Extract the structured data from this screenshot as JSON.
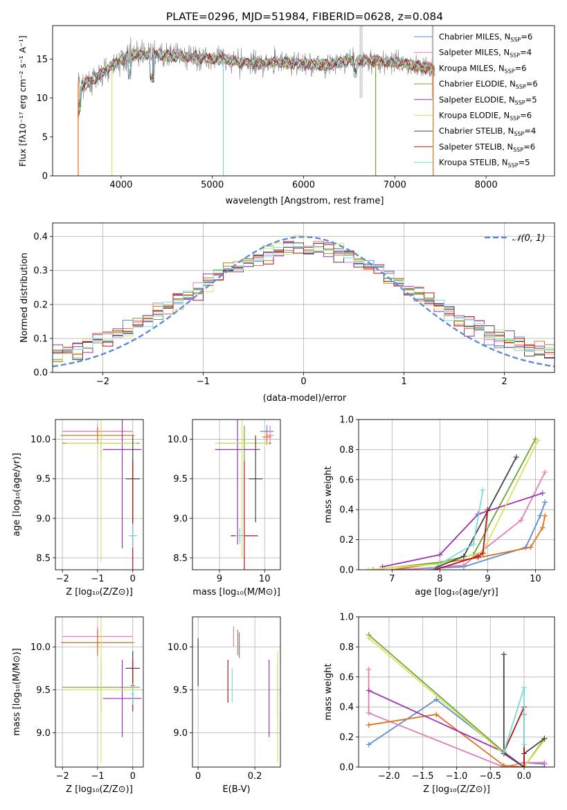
{
  "title": "PLATE=0296, MJD=51984, FIBERID=0628, z=0.084",
  "chart_data": [
    {
      "id": "spectrum",
      "type": "line",
      "xlabel": "wavelength [Angstrom, rest frame]",
      "ylabel": "Flux [fλ10⁻¹⁷ erg cm⁻² s⁻¹ A⁻¹]",
      "xlim": [
        3250,
        8750
      ],
      "ylim": [
        0,
        19.3
      ],
      "xticks": [
        4000,
        5000,
        6000,
        7000,
        8000
      ],
      "yticks": [
        0,
        5,
        10,
        15
      ],
      "legend_position": "top-right",
      "legend": [
        {
          "label": "Chabrier MILES, N",
          "sub": "SSP",
          "suffix": "=6",
          "color": "#5b8bd6"
        },
        {
          "label": "Salpeter MILES, N",
          "sub": "SSP",
          "suffix": "=4",
          "color": "#e07fb4"
        },
        {
          "label": "Kroupa MILES, N",
          "sub": "SSP",
          "suffix": "=6",
          "color": "#e0701a"
        },
        {
          "label": "Chabrier ELODIE, N",
          "sub": "SSP",
          "suffix": "=6",
          "color": "#6aa636"
        },
        {
          "label": "Salpeter ELODIE, N",
          "sub": "SSP",
          "suffix": "=5",
          "color": "#9a32b0"
        },
        {
          "label": "Kroupa ELODIE, N",
          "sub": "SSP",
          "suffix": "=6",
          "color": "#d9e35a"
        },
        {
          "label": "Chabrier STELIB, N",
          "sub": "SSP",
          "suffix": "=4",
          "color": "#444444"
        },
        {
          "label": "Salpeter STELIB, N",
          "sub": "SSP",
          "suffix": "=6",
          "color": "#b01515"
        },
        {
          "label": "Kroupa STELIB, N",
          "sub": "SSP",
          "suffix": "=5",
          "color": "#7ad9dc"
        }
      ],
      "continuum": {
        "x": [
          3550,
          3650,
          3800,
          3950,
          4100,
          4300,
          4500,
          4700,
          4900,
          5100,
          5300,
          5500,
          5700,
          5900,
          6100,
          6300,
          6500,
          6700,
          6900,
          7100,
          7300,
          7500,
          7700,
          7900,
          8100,
          8300,
          8500
        ],
        "y": [
          11.5,
          12.0,
          13.2,
          14.5,
          15.6,
          15.6,
          15.5,
          15.3,
          15.2,
          15.0,
          14.6,
          14.5,
          14.6,
          14.5,
          14.3,
          14.3,
          14.8,
          14.8,
          14.6,
          14.4,
          14.0,
          13.6,
          13.2,
          12.9,
          12.6,
          12.3,
          12.0
        ]
      }
    },
    {
      "id": "residuals",
      "type": "histogram",
      "xlabel": "(data-model)/error",
      "ylabel": "Normed distribution",
      "xlim": [
        -2.5,
        2.5
      ],
      "ylim": [
        0,
        0.44
      ],
      "xticks": [
        -2,
        -1,
        0,
        1,
        2
      ],
      "yticks": [
        0.0,
        0.1,
        0.2,
        0.3,
        0.4
      ],
      "bin_width": 0.1,
      "reference_curve": {
        "label": "𝒩(0, 1)",
        "mean": 0,
        "sigma": 1,
        "color": "#5b8bd6"
      },
      "legend_position": "top-right"
    },
    {
      "id": "age-vs-metallicity",
      "type": "errorbar",
      "xlabel": "Z [log₁₀(Z/Z⊙)]",
      "ylabel": "age  [log₁₀(age/yr)]",
      "xlim": [
        -2.2,
        0.3
      ],
      "ylim": [
        8.35,
        10.25
      ],
      "xticks": [
        -2,
        -1,
        0
      ],
      "yticks": [
        8.5,
        9.0,
        9.5,
        10.0
      ],
      "points": [
        {
          "series": "Chabrier MILES",
          "x": -1.0,
          "y": 10.1,
          "xerr": 1.0,
          "yerr": 0.05
        },
        {
          "series": "Salpeter MILES",
          "x": -1.0,
          "y": 10.1,
          "xerr": 1.0,
          "yerr": 0.08
        },
        {
          "series": "Kroupa MILES",
          "x": -1.0,
          "y": 10.05,
          "xerr": 1.05,
          "yerr": 0.1
        },
        {
          "series": "Chabrier ELODIE",
          "x": -0.9,
          "y": 9.95,
          "xerr": 1.1,
          "yerr": 0.2
        },
        {
          "series": "Salpeter ELODIE",
          "x": -0.3,
          "y": 9.87,
          "xerr": 0.55,
          "yerr": 1.25
        },
        {
          "series": "Kroupa ELODIE",
          "x": -0.9,
          "y": 9.95,
          "xerr": 1.0,
          "yerr": 1.5
        },
        {
          "series": "Chabrier STELIB",
          "x": 0.0,
          "y": 9.5,
          "xerr": 0.2,
          "yerr": 0.55
        },
        {
          "series": "Salpeter STELIB",
          "x": 0.0,
          "y": 8.78,
          "xerr": 0.1,
          "yerr": 0.95
        },
        {
          "series": "Kroupa STELIB",
          "x": 0.0,
          "y": 8.78,
          "xerr": 0.12,
          "yerr": 0.15
        }
      ]
    },
    {
      "id": "age-vs-mass",
      "type": "errorbar",
      "xlabel": "mass [log₁₀(M/M⊙)]",
      "ylabel": "",
      "xlim": [
        8.4,
        10.35
      ],
      "ylim": [
        8.35,
        10.25
      ],
      "xticks": [
        9,
        10
      ],
      "yticks": [
        8.5,
        9.0,
        9.5,
        10.0
      ],
      "points": [
        {
          "series": "Chabrier MILES",
          "x": 10.05,
          "y": 10.1,
          "xerr": 0.15,
          "yerr": 0.08
        },
        {
          "series": "Salpeter MILES",
          "x": 10.12,
          "y": 10.05,
          "xerr": 0.08,
          "yerr": 0.12
        },
        {
          "series": "Kroupa MILES",
          "x": 10.05,
          "y": 10.03,
          "xerr": 0.1,
          "yerr": 0.1
        },
        {
          "series": "Chabrier ELODIE",
          "x": 9.55,
          "y": 9.95,
          "xerr": 0.6,
          "yerr": 0.22
        },
        {
          "series": "Salpeter ELODIE",
          "x": 9.4,
          "y": 9.87,
          "xerr": 0.5,
          "yerr": 1.2
        },
        {
          "series": "Kroupa ELODIE",
          "x": 9.5,
          "y": 9.95,
          "xerr": 0.6,
          "yerr": 1.45
        },
        {
          "series": "Chabrier STELIB",
          "x": 9.8,
          "y": 9.5,
          "xerr": 0.15,
          "yerr": 0.55
        },
        {
          "series": "Salpeter STELIB",
          "x": 9.55,
          "y": 8.78,
          "xerr": 0.3,
          "yerr": 0.95
        },
        {
          "series": "Kroupa STELIB",
          "x": 9.45,
          "y": 8.78,
          "xerr": 0.1,
          "yerr": 0.1
        }
      ]
    },
    {
      "id": "massweight-vs-age",
      "type": "line",
      "xlabel": "age  [log₁₀(age/yr)]",
      "ylabel": "mass weight",
      "xlim": [
        6.3,
        10.4
      ],
      "ylim": [
        0,
        1.0
      ],
      "xticks": [
        7,
        8,
        9,
        10
      ],
      "yticks": [
        0.0,
        0.2,
        0.4,
        0.6,
        0.8,
        1.0
      ],
      "series": [
        {
          "name": "Chabrier MILES",
          "x": [
            7.0,
            8.5,
            9.8,
            10.1,
            10.2
          ],
          "y": [
            0.0,
            0.02,
            0.15,
            0.36,
            0.45
          ]
        },
        {
          "name": "Salpeter MILES",
          "x": [
            7.2,
            8.5,
            9.7,
            10.2
          ],
          "y": [
            0.0,
            0.03,
            0.33,
            0.65
          ]
        },
        {
          "name": "Kroupa MILES",
          "x": [
            7.0,
            8.8,
            9.9,
            10.15,
            10.2
          ],
          "y": [
            0.0,
            0.08,
            0.15,
            0.28,
            0.36
          ]
        },
        {
          "name": "Chabrier ELODIE",
          "x": [
            6.6,
            8.0,
            8.7,
            10.0
          ],
          "y": [
            0.0,
            0.05,
            0.1,
            0.87
          ]
        },
        {
          "name": "Salpeter ELODIE",
          "x": [
            6.8,
            8.0,
            8.8,
            10.15
          ],
          "y": [
            0.02,
            0.1,
            0.37,
            0.51
          ]
        },
        {
          "name": "Kroupa ELODIE",
          "x": [
            6.5,
            8.0,
            8.9,
            10.05
          ],
          "y": [
            0.0,
            0.04,
            0.12,
            0.86
          ]
        },
        {
          "name": "Chabrier STELIB",
          "x": [
            7.8,
            8.5,
            9.6
          ],
          "y": [
            0.0,
            0.09,
            0.75
          ]
        },
        {
          "name": "Salpeter STELIB",
          "x": [
            7.9,
            8.8,
            8.9,
            9.0
          ],
          "y": [
            0.0,
            0.09,
            0.11,
            0.4
          ]
        },
        {
          "name": "Kroupa STELIB",
          "x": [
            7.8,
            8.7,
            8.9
          ],
          "y": [
            0.0,
            0.17,
            0.53
          ]
        }
      ]
    },
    {
      "id": "mass-vs-metallicity",
      "type": "errorbar",
      "xlabel": "Z [log₁₀(Z/Z⊙)]",
      "ylabel": "mass [log₁₀(M/M⊙)]",
      "xlim": [
        -2.2,
        0.3
      ],
      "ylim": [
        8.6,
        10.35
      ],
      "xticks": [
        -2,
        -1,
        0
      ],
      "yticks": [
        9.0,
        9.5,
        10.0
      ],
      "points": [
        {
          "series": "Chabrier MILES",
          "x": -1.0,
          "y": 10.05,
          "xerr": 1.0,
          "yerr": 0.15
        },
        {
          "series": "Salpeter MILES",
          "x": -1.0,
          "y": 10.12,
          "xerr": 1.0,
          "yerr": 0.12
        },
        {
          "series": "Kroupa MILES",
          "x": -1.0,
          "y": 10.05,
          "xerr": 1.05,
          "yerr": 0.15
        },
        {
          "series": "Chabrier ELODIE",
          "x": -0.9,
          "y": 9.53,
          "xerr": 1.1,
          "yerr": 0.3
        },
        {
          "series": "Salpeter ELODIE",
          "x": -0.3,
          "y": 9.4,
          "xerr": 0.55,
          "yerr": 0.45
        },
        {
          "series": "Kroupa ELODIE",
          "x": -0.9,
          "y": 9.5,
          "xerr": 1.0,
          "yerr": 0.85
        },
        {
          "series": "Chabrier STELIB",
          "x": 0.0,
          "y": 9.75,
          "xerr": 0.2,
          "yerr": 0.2
        },
        {
          "series": "Salpeter STELIB",
          "x": 0.0,
          "y": 9.55,
          "xerr": 0.05,
          "yerr": 0.3
        },
        {
          "series": "Kroupa STELIB",
          "x": 0.0,
          "y": 9.45,
          "xerr": 0.05,
          "yerr": 0.12
        }
      ]
    },
    {
      "id": "mass-vs-ebv",
      "type": "errorbar",
      "xlabel": "E(B-V)",
      "ylabel": "",
      "xlim": [
        -0.02,
        0.29
      ],
      "ylim": [
        8.6,
        10.35
      ],
      "xticks": [
        0.0,
        0.2
      ],
      "yticks": [
        9.0,
        9.5,
        10.0
      ],
      "points": [
        {
          "series": "Chabrier MILES",
          "x": 0.145,
          "y": 10.02,
          "xerr": 0.0,
          "yerr": 0.15
        },
        {
          "series": "Salpeter MILES",
          "x": 0.125,
          "y": 10.12,
          "xerr": 0.0,
          "yerr": 0.12
        },
        {
          "series": "Kroupa MILES",
          "x": 0.14,
          "y": 10.05,
          "xerr": 0.0,
          "yerr": 0.15
        },
        {
          "series": "Chabrier ELODIE",
          "x": 0.28,
          "y": 9.5,
          "xerr": 0.0,
          "yerr": 0.3
        },
        {
          "series": "Salpeter ELODIE",
          "x": 0.25,
          "y": 9.4,
          "xerr": 0.0,
          "yerr": 0.45
        },
        {
          "series": "Kroupa ELODIE",
          "x": 0.28,
          "y": 9.3,
          "xerr": 0.0,
          "yerr": 0.65
        },
        {
          "series": "Chabrier STELIB",
          "x": 0.0,
          "y": 9.82,
          "xerr": 0.0,
          "yerr": 0.28
        },
        {
          "series": "Salpeter STELIB",
          "x": 0.105,
          "y": 9.6,
          "xerr": 0.0,
          "yerr": 0.25
        },
        {
          "series": "Kroupa STELIB",
          "x": 0.12,
          "y": 9.55,
          "xerr": 0.0,
          "yerr": 0.2
        }
      ]
    },
    {
      "id": "massweight-vs-metallicity",
      "type": "line",
      "xlabel": "Z [log₁₀(Z/Z⊙)]",
      "ylabel": "mass weight",
      "xlim": [
        -2.45,
        0.45
      ],
      "ylim": [
        0,
        1.0
      ],
      "xticks": [
        -2.0,
        -1.5,
        -1.0,
        -0.5,
        0.0
      ],
      "yticks": [
        0.0,
        0.2,
        0.4,
        0.6,
        0.8,
        1.0
      ],
      "series": [
        {
          "name": "Chabrier MILES",
          "x": [
            -2.3,
            -1.3,
            -0.3,
            0.0,
            0.0,
            0.3
          ],
          "y": [
            0.15,
            0.45,
            0.1,
            0.0,
            0.03,
            0.02
          ]
        },
        {
          "name": "Salpeter MILES",
          "x": [
            -2.3,
            -2.3,
            -0.3,
            0.0,
            0.3
          ],
          "y": [
            0.65,
            0.36,
            0.0,
            0.03,
            0.03
          ]
        },
        {
          "name": "Kroupa MILES",
          "x": [
            -2.3,
            -1.3,
            -0.3,
            0.0,
            0.0
          ],
          "y": [
            0.28,
            0.35,
            0.01,
            0.0,
            0.35
          ]
        },
        {
          "name": "Chabrier ELODIE",
          "x": [
            -2.3,
            -0.3,
            0.0,
            0.3
          ],
          "y": [
            0.88,
            0.1,
            0.0,
            0.19
          ]
        },
        {
          "name": "Salpeter ELODIE",
          "x": [
            -2.3,
            -0.3,
            0.0,
            0.3
          ],
          "y": [
            0.51,
            0.1,
            0.0,
            0.0
          ]
        },
        {
          "name": "Kroupa ELODIE",
          "x": [
            -2.3,
            -0.3,
            0.0,
            0.3
          ],
          "y": [
            0.86,
            0.09,
            0.0,
            0.18
          ]
        },
        {
          "name": "Chabrier STELIB",
          "x": [
            -0.3,
            -0.3,
            0.0,
            0.0,
            0.3
          ],
          "y": [
            0.75,
            0.09,
            0.0,
            0.09,
            0.19
          ]
        },
        {
          "name": "Salpeter STELIB",
          "x": [
            -0.3,
            0.0,
            0.0
          ],
          "y": [
            0.1,
            0.4,
            0.0
          ]
        },
        {
          "name": "Kroupa STELIB",
          "x": [
            -0.3,
            0.0,
            0.0
          ],
          "y": [
            0.1,
            0.53,
            0.15
          ]
        }
      ]
    }
  ]
}
